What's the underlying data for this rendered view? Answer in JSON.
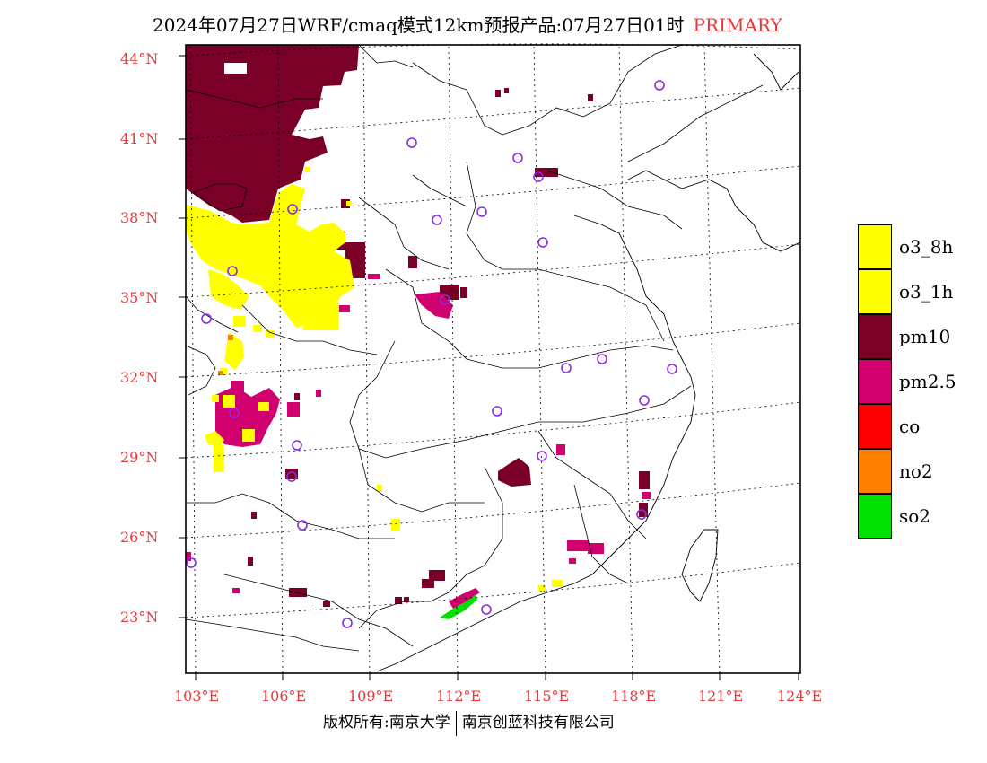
{
  "title": {
    "main": "2024年07月27日WRF/cmaq模式12km预报产品:07月27日01时",
    "tag": "PRIMARY"
  },
  "axes": {
    "lat_labels": [
      "44°N",
      "41°N",
      "38°N",
      "35°N",
      "32°N",
      "29°N",
      "26°N",
      "23°N"
    ],
    "lon_labels": [
      "103°E",
      "106°E",
      "109°E",
      "112°E",
      "115°E",
      "118°E",
      "121°E",
      "124°E"
    ]
  },
  "legend": [
    {
      "label": "o3_8h",
      "color": "#ffff00"
    },
    {
      "label": "o3_1h",
      "color": "#ffff00"
    },
    {
      "label": "pm10",
      "color": "#7a0028"
    },
    {
      "label": "pm2.5",
      "color": "#d0006f"
    },
    {
      "label": "co",
      "color": "#ff0000"
    },
    {
      "label": "no2",
      "color": "#ff7f00"
    },
    {
      "label": "so2",
      "color": "#00e000"
    }
  ],
  "colors": {
    "o3": "#ffff00",
    "pm10": "#7a0028",
    "pm25": "#d0006f",
    "no2": "#ff7f00",
    "so2": "#00e000",
    "station": "#8a2be2",
    "axis_label": "#e8393a"
  },
  "footer": {
    "left": "版权所有:南京大学",
    "right": "南京创蓝科技有限公司"
  }
}
